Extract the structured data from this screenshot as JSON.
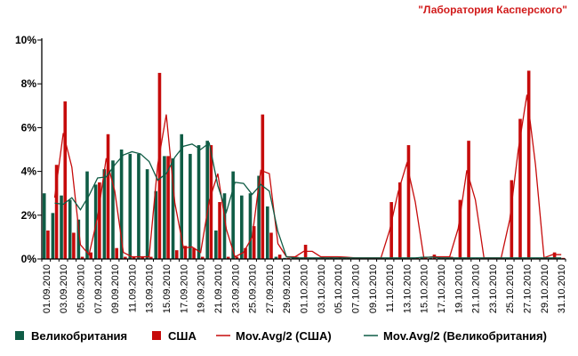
{
  "credit": "\"Лаборатория Касперского\"",
  "colors": {
    "uk": "#0f5c45",
    "us": "#c60b0b",
    "axis": "#000000"
  },
  "chart_data": {
    "type": "bar",
    "title": "",
    "xlabel": "",
    "ylabel": "",
    "ylim": [
      0,
      10
    ],
    "y_ticks": [
      "0%",
      "2%",
      "4%",
      "6%",
      "8%",
      "10%"
    ],
    "x": [
      "01.09.2010",
      "02.09.2010",
      "03.09.2010",
      "04.09.2010",
      "05.09.2010",
      "06.09.2010",
      "07.09.2010",
      "08.09.2010",
      "09.09.2010",
      "10.09.2010",
      "11.09.2010",
      "12.09.2010",
      "13.09.2010",
      "14.09.2010",
      "15.09.2010",
      "16.09.2010",
      "17.09.2010",
      "18.09.2010",
      "19.09.2010",
      "20.09.2010",
      "21.09.2010",
      "22.09.2010",
      "23.09.2010",
      "24.09.2010",
      "25.09.2010",
      "26.09.2010",
      "27.09.2010",
      "28.09.2010",
      "29.09.2010",
      "30.09.2010",
      "01.10.2010",
      "02.10.2010",
      "03.10.2010",
      "04.10.2010",
      "05.10.2010",
      "06.10.2010",
      "07.10.2010",
      "08.10.2010",
      "09.10.2010",
      "10.10.2010",
      "11.10.2010",
      "12.10.2010",
      "13.10.2010",
      "14.10.2010",
      "15.10.2010",
      "16.10.2010",
      "17.10.2010",
      "18.10.2010",
      "19.10.2010",
      "20.10.2010",
      "21.10.2010",
      "22.10.2010",
      "23.10.2010",
      "24.10.2010",
      "25.10.2010",
      "26.10.2010",
      "27.10.2010",
      "28.10.2010",
      "29.10.2010",
      "30.10.2010",
      "31.10.2010"
    ],
    "x_tick_labels": [
      "01.09.2010",
      "03.09.2010",
      "05.09.2010",
      "07.09.2010",
      "09.09.2010",
      "11.09.2010",
      "13.09.2010",
      "15.09.2010",
      "17.09.2010",
      "19.09.2010",
      "21.09.2010",
      "23.09.2010",
      "25.09.2010",
      "27.09.2010",
      "29.09.2010",
      "01.10.2010",
      "03.10.2010",
      "05.10.2010",
      "07.10.2010",
      "09.10.2010",
      "11.10.2010",
      "13.10.2010",
      "15.10.2010",
      "17.10.2010",
      "19.10.2010",
      "21.10.2010",
      "23.10.2010",
      "25.10.2010",
      "27.10.2010",
      "29.10.2010",
      "31.10.2010"
    ],
    "series": [
      {
        "name": "Великобритания",
        "kind": "bar",
        "color_key": "uk",
        "values": [
          3.0,
          2.1,
          2.9,
          2.7,
          1.8,
          4.0,
          3.4,
          4.1,
          4.5,
          5.0,
          4.8,
          4.8,
          4.1,
          3.1,
          4.7,
          4.6,
          5.7,
          4.8,
          5.2,
          5.4,
          1.3,
          3.0,
          4.0,
          2.9,
          3.0,
          3.8,
          2.4,
          0.1,
          0.05,
          0.05,
          0.05,
          0.05,
          0.05,
          0.05,
          0.05,
          0.05,
          0.05,
          0.05,
          0.05,
          0.05,
          0.05,
          0.05,
          0.05,
          0.05,
          0.1,
          0.05,
          0.05,
          0.05,
          0.05,
          0.05,
          0.05,
          0.05,
          0.05,
          0.05,
          0.05,
          0.05,
          0.05,
          0.05,
          0.05,
          0.05,
          0.05
        ]
      },
      {
        "name": "США",
        "kind": "bar",
        "color_key": "us",
        "values": [
          1.3,
          4.3,
          7.2,
          1.2,
          0.1,
          0.3,
          3.5,
          5.7,
          0.5,
          0.1,
          0.1,
          0.1,
          0.1,
          8.5,
          4.7,
          0.4,
          0.6,
          0.5,
          0.1,
          5.2,
          2.6,
          0.1,
          0.1,
          0.5,
          1.5,
          6.6,
          1.2,
          0.2,
          0.05,
          0.1,
          0.65,
          0.05,
          0.1,
          0.1,
          0.1,
          0.05,
          0.05,
          0.05,
          0.05,
          0.05,
          2.6,
          3.5,
          5.2,
          0.05,
          0.05,
          0.2,
          0.05,
          0.1,
          2.7,
          5.4,
          0.05,
          0.05,
          0.05,
          0.05,
          3.6,
          6.4,
          8.6,
          0.05,
          0.05,
          0.3,
          0.05
        ]
      },
      {
        "name": "Mov.Avg/2 (США)",
        "kind": "line",
        "color_key": "us",
        "values": [
          null,
          2.8,
          5.75,
          4.2,
          0.65,
          0.2,
          1.9,
          4.6,
          3.1,
          0.3,
          0.1,
          0.1,
          0.1,
          4.3,
          6.6,
          2.55,
          0.5,
          0.55,
          0.3,
          2.65,
          3.9,
          1.35,
          0.1,
          0.3,
          1.0,
          4.05,
          3.9,
          0.7,
          0.1,
          0.1,
          0.35,
          0.35,
          0.1,
          0.1,
          0.1,
          0.08,
          0.05,
          0.05,
          0.05,
          0.05,
          1.3,
          3.05,
          4.35,
          2.6,
          0.05,
          0.1,
          0.1,
          0.1,
          1.4,
          4.05,
          2.7,
          0.05,
          0.05,
          0.05,
          1.8,
          5.0,
          7.5,
          4.3,
          0.05,
          0.2,
          0.2
        ]
      },
      {
        "name": "Mov.Avg/2 (Великобритания)",
        "kind": "line",
        "color_key": "uk",
        "values": [
          null,
          2.55,
          2.5,
          2.8,
          2.25,
          2.9,
          3.7,
          3.75,
          4.3,
          4.75,
          4.9,
          4.8,
          4.45,
          3.6,
          3.9,
          4.65,
          5.15,
          5.25,
          5.0,
          5.3,
          3.35,
          2.15,
          3.5,
          3.45,
          2.95,
          3.4,
          3.1,
          1.25,
          0.1,
          0.05,
          0.05,
          0.05,
          0.05,
          0.05,
          0.05,
          0.05,
          0.05,
          0.05,
          0.05,
          0.05,
          0.05,
          0.05,
          0.05,
          0.05,
          0.08,
          0.08,
          0.05,
          0.05,
          0.05,
          0.05,
          0.05,
          0.05,
          0.05,
          0.05,
          0.05,
          0.05,
          0.05,
          0.05,
          0.05,
          0.05,
          0.05
        ]
      }
    ],
    "legend": {
      "placement": "bottom",
      "items": [
        "Великобритания",
        "США",
        "Mov.Avg/2 (США)",
        "Mov.Avg/2 (Великобритания)"
      ]
    }
  }
}
